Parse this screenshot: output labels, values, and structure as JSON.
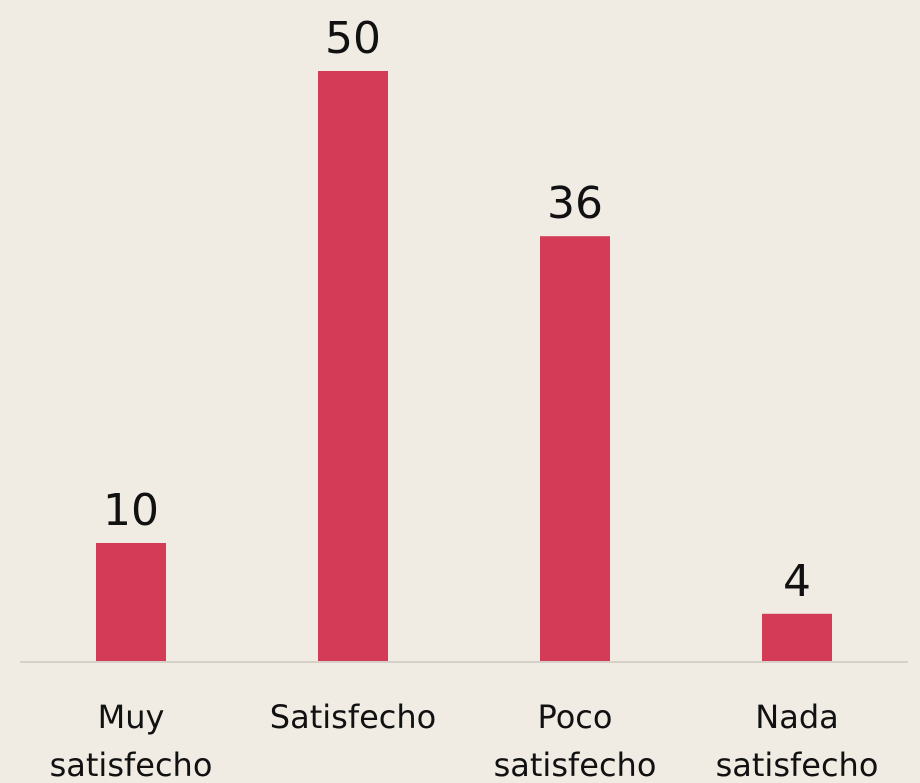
{
  "chart_data": {
    "type": "bar",
    "categories": [
      "Muy satisfecho",
      "Satisfecho",
      "Poco satisfecho",
      "Nada satisfecho"
    ],
    "values": [
      10,
      50,
      36,
      4
    ],
    "color": "#d33b57"
  }
}
